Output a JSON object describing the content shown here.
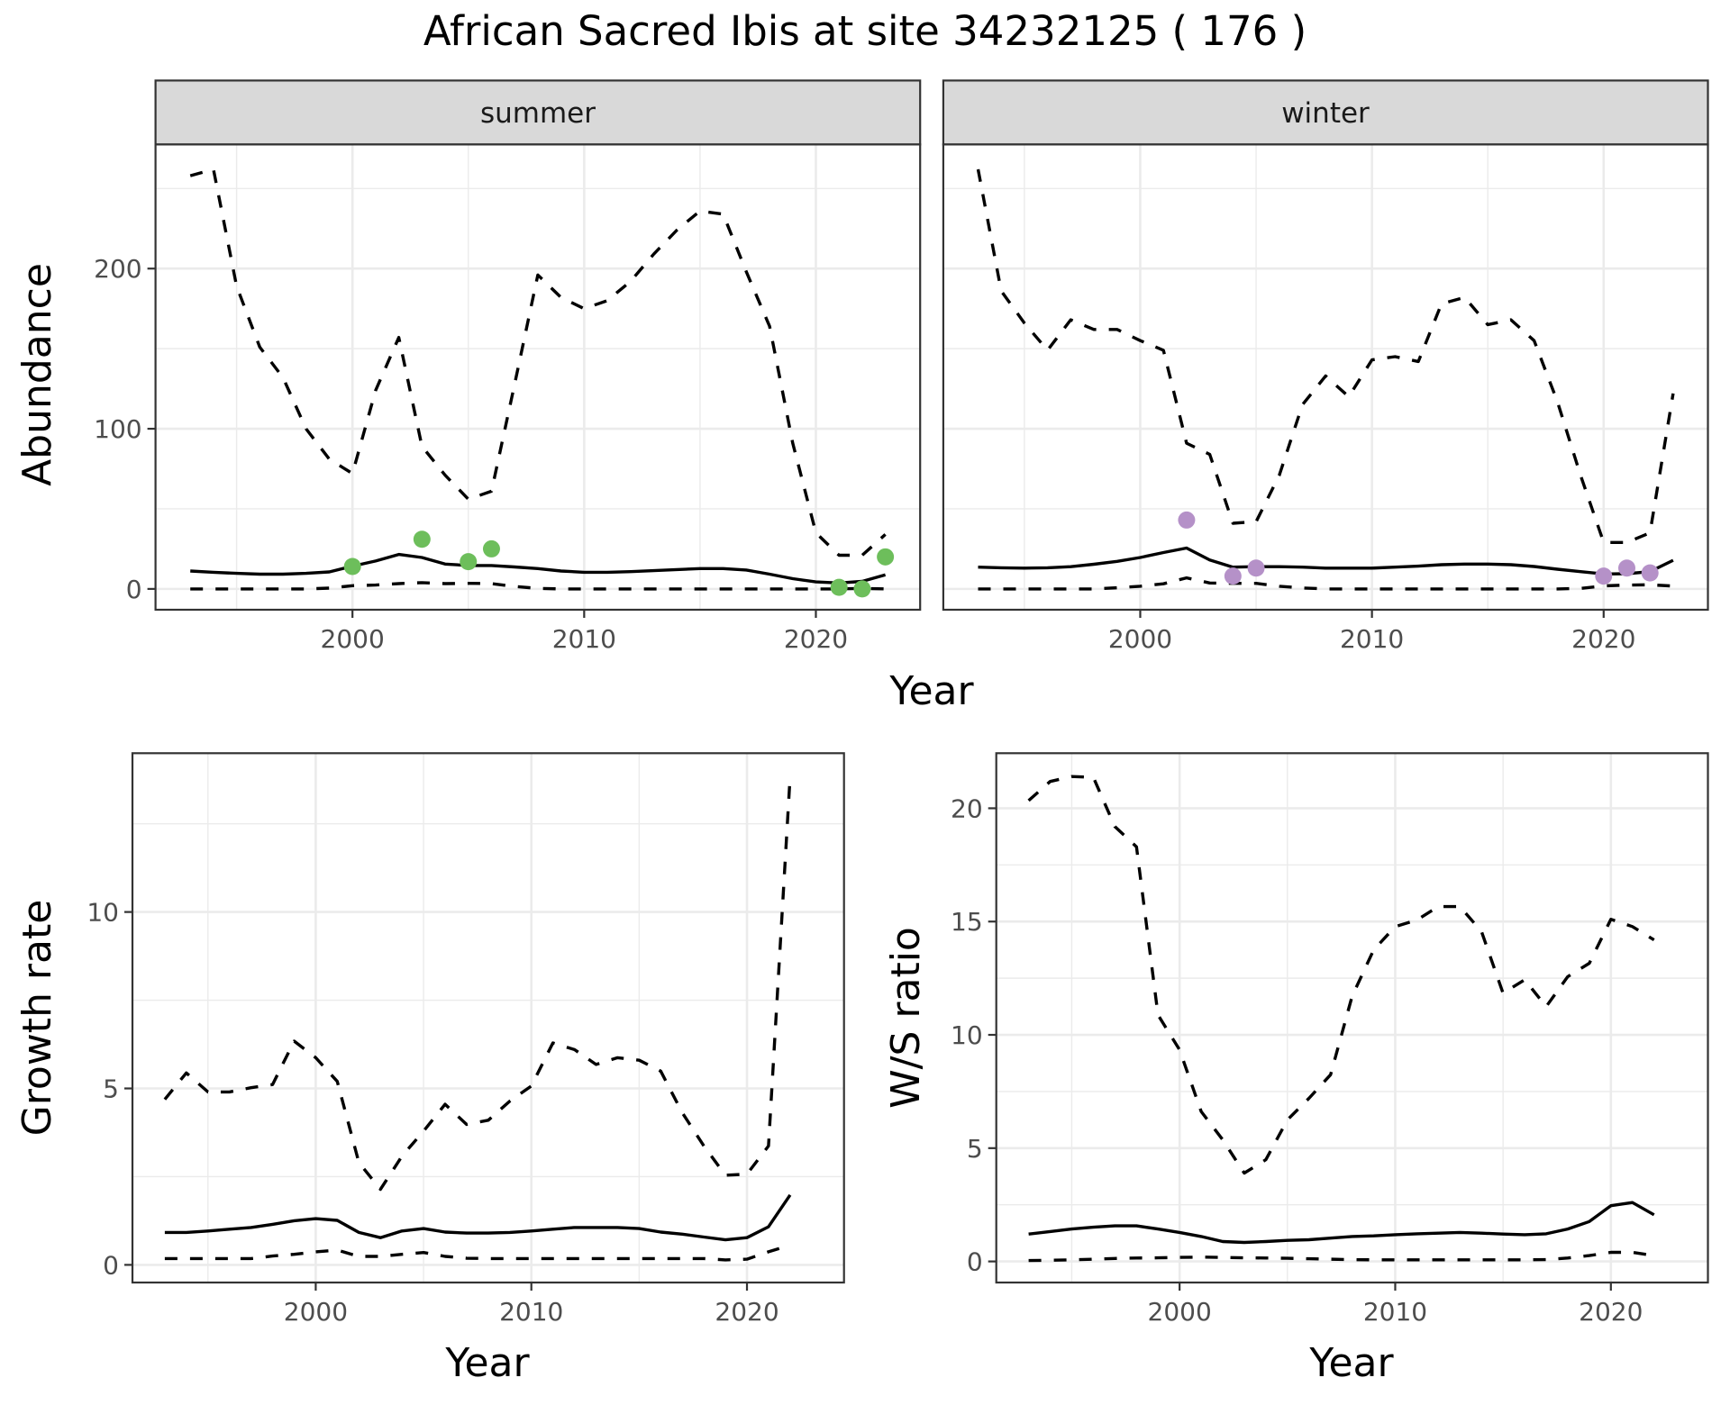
{
  "title": "African Sacred Ibis at site 34232125 ( 176 )",
  "colors": {
    "summer_points": "#6dbe5b",
    "winter_points": "#b591c8",
    "lines": "#000000",
    "strip_fill": "#d9d9d9",
    "grid": "#ebebeb",
    "panel_border": "#333333",
    "tick_text": "#4d4d4d"
  },
  "chart_data": [
    {
      "type": "line",
      "panel": "top",
      "xlabel": "Year",
      "ylabel": "Abundance",
      "xlim": [
        1991.5,
        2024.5
      ],
      "ylim": [
        -13,
        277.5
      ],
      "x_ticks": [
        2000,
        2010,
        2020
      ],
      "x_tick_labels": [
        "2000",
        "2010",
        "2020"
      ],
      "y_ticks": [
        0,
        100,
        200
      ],
      "y_tick_labels": [
        "0",
        "100",
        "200"
      ],
      "grid": true,
      "facets": [
        {
          "strip": "summer",
          "point_color": "#6dbe5b",
          "x": [
            1993,
            1994,
            1995,
            1996,
            1997,
            1998,
            1999,
            2000,
            2001,
            2002,
            2003,
            2004,
            2005,
            2006,
            2007,
            2008,
            2009,
            2010,
            2011,
            2012,
            2013,
            2014,
            2015,
            2016,
            2017,
            2018,
            2019,
            2020,
            2021,
            2022,
            2023
          ],
          "series": [
            {
              "name": "upper",
              "style": "dashed",
              "values": [
                258,
                262,
                189,
                151,
                132,
                100,
                81,
                72,
                124,
                157,
                89,
                71,
                56,
                61,
                128,
                196,
                182,
                175,
                180,
                192,
                209,
                224,
                236,
                234,
                198,
                164,
                91,
                35,
                21,
                21,
                34
              ]
            },
            {
              "name": "mean",
              "style": "solid",
              "values": [
                11.2,
                10.4,
                9.7,
                9.2,
                9.2,
                9.7,
                10.6,
                14.2,
                17.4,
                21.5,
                19.6,
                15.5,
                14.6,
                14.6,
                13.7,
                12.7,
                11.2,
                10.4,
                10.4,
                10.8,
                11.4,
                12.1,
                12.7,
                12.7,
                11.8,
                9.2,
                6.4,
                4.4,
                3.7,
                4.7,
                8.8
              ]
            },
            {
              "name": "lower",
              "style": "dashed",
              "values": [
                0,
                0,
                0,
                0,
                0,
                0,
                0.5,
                2,
                2.4,
                3.3,
                3.9,
                3.3,
                3.5,
                3.3,
                1.5,
                0.3,
                0,
                0,
                0,
                0,
                0,
                0,
                0,
                0,
                0,
                0,
                0,
                0,
                0,
                0.3,
                0
              ]
            }
          ],
          "points": {
            "x": [
              2000,
              2003,
              2005,
              2006,
              2021,
              2022,
              2023
            ],
            "y": [
              14,
              31,
              17,
              25,
              1,
              0,
              20
            ]
          }
        },
        {
          "strip": "winter",
          "point_color": "#b591c8",
          "x": [
            1993,
            1994,
            1995,
            1996,
            1997,
            1998,
            1999,
            2000,
            2001,
            2002,
            2003,
            2004,
            2005,
            2006,
            2007,
            2008,
            2009,
            2010,
            2011,
            2012,
            2013,
            2014,
            2015,
            2016,
            2017,
            2018,
            2019,
            2020,
            2021,
            2022,
            2023
          ],
          "series": [
            {
              "name": "upper",
              "style": "dashed",
              "values": [
                262,
                186,
                166,
                149,
                168,
                162,
                162,
                155,
                149,
                91,
                84,
                41,
                42,
                71,
                115,
                133,
                120,
                143,
                145,
                142,
                178,
                182,
                165,
                168,
                155,
                117,
                71,
                29,
                29,
                35,
                122
              ]
            },
            {
              "name": "mean",
              "style": "solid",
              "values": [
                13.6,
                13.2,
                13,
                13.2,
                13.9,
                15.4,
                17.2,
                19.6,
                22.7,
                25.5,
                18.1,
                13.6,
                13.9,
                13.9,
                13.6,
                13,
                13,
                13,
                13.6,
                14.2,
                15.1,
                15.5,
                15.5,
                15.1,
                14,
                12.3,
                10.8,
                9.3,
                9.5,
                10.8,
                17.9
              ]
            },
            {
              "name": "lower",
              "style": "dashed",
              "values": [
                0,
                0,
                0,
                0,
                0,
                0,
                0.7,
                1.7,
                3.2,
                6.9,
                3.7,
                3.5,
                3.5,
                1.7,
                0.6,
                0,
                0,
                0,
                0,
                0,
                0,
                0,
                0,
                0,
                0,
                0,
                0.3,
                1.9,
                2.4,
                2.6,
                1.8
              ]
            }
          ],
          "points": {
            "x": [
              2002,
              2004,
              2005,
              2020,
              2021,
              2022
            ],
            "y": [
              43,
              8,
              13,
              8,
              13,
              10
            ]
          }
        }
      ]
    },
    {
      "type": "line",
      "panel": "bottom-left",
      "xlabel": "Year",
      "ylabel": "Growth rate",
      "xlim": [
        1991.5,
        2024.5
      ],
      "ylim": [
        -0.5,
        14.5
      ],
      "x_ticks": [
        2000,
        2010,
        2020
      ],
      "x_tick_labels": [
        "2000",
        "2010",
        "2020"
      ],
      "y_ticks": [
        0,
        5,
        10
      ],
      "y_tick_labels": [
        "0",
        "5",
        "10"
      ],
      "grid": true,
      "x": [
        1993,
        1994,
        1995,
        1996,
        1997,
        1998,
        1999,
        2000,
        2001,
        2002,
        2003,
        2004,
        2005,
        2006,
        2007,
        2008,
        2009,
        2010,
        2011,
        2012,
        2013,
        2014,
        2015,
        2016,
        2017,
        2018,
        2019,
        2020,
        2021,
        2022
      ],
      "series": [
        {
          "name": "upper",
          "style": "dashed",
          "values": [
            4.69,
            5.44,
            4.9,
            4.9,
            5.02,
            5.11,
            6.34,
            5.87,
            5.2,
            2.9,
            2.14,
            3.08,
            3.79,
            4.55,
            3.98,
            4.1,
            4.64,
            5.07,
            6.29,
            6.1,
            5.68,
            5.87,
            5.8,
            5.49,
            4.31,
            3.37,
            2.54,
            2.57,
            3.37,
            13.84
          ]
        },
        {
          "name": "mean",
          "style": "solid",
          "values": [
            0.92,
            0.92,
            0.96,
            1.01,
            1.06,
            1.15,
            1.25,
            1.31,
            1.26,
            0.92,
            0.77,
            0.96,
            1.03,
            0.93,
            0.9,
            0.9,
            0.92,
            0.96,
            1.01,
            1.06,
            1.06,
            1.06,
            1.03,
            0.93,
            0.87,
            0.79,
            0.71,
            0.77,
            1.08,
            1.98
          ]
        },
        {
          "name": "lower",
          "style": "dashed",
          "values": [
            0.18,
            0.18,
            0.18,
            0.18,
            0.18,
            0.25,
            0.3,
            0.37,
            0.42,
            0.24,
            0.24,
            0.3,
            0.35,
            0.24,
            0.19,
            0.18,
            0.18,
            0.18,
            0.18,
            0.18,
            0.18,
            0.18,
            0.18,
            0.18,
            0.18,
            0.18,
            0.14,
            0.16,
            0.37,
            0.56
          ]
        }
      ]
    },
    {
      "type": "line",
      "panel": "bottom-right",
      "xlabel": "Year",
      "ylabel": "W/S ratio",
      "xlim": [
        1991.5,
        2024.5
      ],
      "ylim": [
        -0.93,
        22.43
      ],
      "x_ticks": [
        2000,
        2010,
        2020
      ],
      "x_tick_labels": [
        "2000",
        "2010",
        "2020"
      ],
      "y_ticks": [
        0,
        5,
        10,
        15,
        20
      ],
      "y_tick_labels": [
        "0",
        "5",
        "10",
        "15",
        "20"
      ],
      "grid": true,
      "x": [
        1993,
        1994,
        1995,
        1996,
        1997,
        1998,
        1999,
        2000,
        2001,
        2002,
        2003,
        2004,
        2005,
        2006,
        2007,
        2008,
        2009,
        2010,
        2011,
        2012,
        2013,
        2014,
        2015,
        2016,
        2017,
        2018,
        2019,
        2020,
        2021,
        2022
      ],
      "series": [
        {
          "name": "upper",
          "style": "dashed",
          "values": [
            20.34,
            21.18,
            21.4,
            21.37,
            19.19,
            18.3,
            10.88,
            9.34,
            6.62,
            5.37,
            3.9,
            4.49,
            6.25,
            7.2,
            8.24,
            11.7,
            13.75,
            14.78,
            15.07,
            15.66,
            15.66,
            14.56,
            11.84,
            12.43,
            11.25,
            12.57,
            13.16,
            15.1,
            14.78,
            14.19
          ]
        },
        {
          "name": "mean",
          "style": "solid",
          "values": [
            1.21,
            1.32,
            1.43,
            1.51,
            1.57,
            1.57,
            1.43,
            1.28,
            1.1,
            0.88,
            0.84,
            0.88,
            0.93,
            0.96,
            1.03,
            1.1,
            1.13,
            1.18,
            1.22,
            1.25,
            1.28,
            1.25,
            1.21,
            1.18,
            1.22,
            1.43,
            1.76,
            2.46,
            2.6,
            2.06
          ]
        },
        {
          "name": "lower",
          "style": "dashed",
          "values": [
            0.04,
            0.05,
            0.07,
            0.1,
            0.13,
            0.15,
            0.16,
            0.18,
            0.19,
            0.18,
            0.16,
            0.15,
            0.14,
            0.12,
            0.1,
            0.08,
            0.07,
            0.07,
            0.07,
            0.07,
            0.07,
            0.07,
            0.07,
            0.07,
            0.08,
            0.15,
            0.26,
            0.4,
            0.4,
            0.26
          ]
        }
      ]
    }
  ]
}
